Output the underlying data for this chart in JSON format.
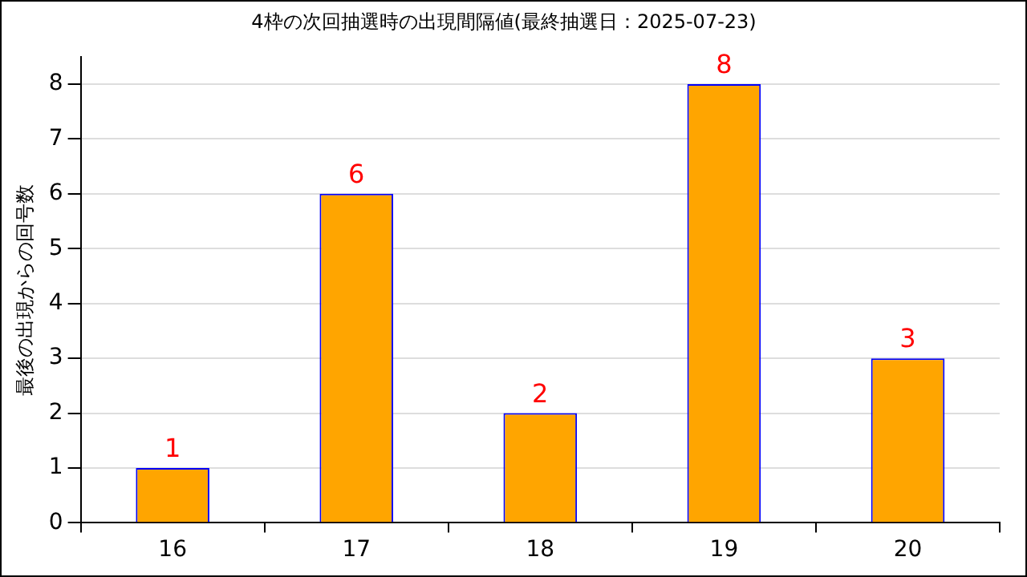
{
  "chart_data": {
    "type": "bar",
    "title": "4枠の次回抽選時の出現間隔値(最終抽選日：2025-07-23)",
    "ylabel": "最後の出現からの回号数",
    "categories": [
      "16",
      "17",
      "18",
      "19",
      "20"
    ],
    "values": [
      1,
      6,
      2,
      8,
      3
    ],
    "color": "#ffa500",
    "ylim": [
      0,
      8.5
    ],
    "yticks": [
      0,
      1,
      2,
      3,
      4,
      5,
      6,
      7,
      8
    ],
    "grid": "y",
    "data_labels": true,
    "legend": false
  }
}
